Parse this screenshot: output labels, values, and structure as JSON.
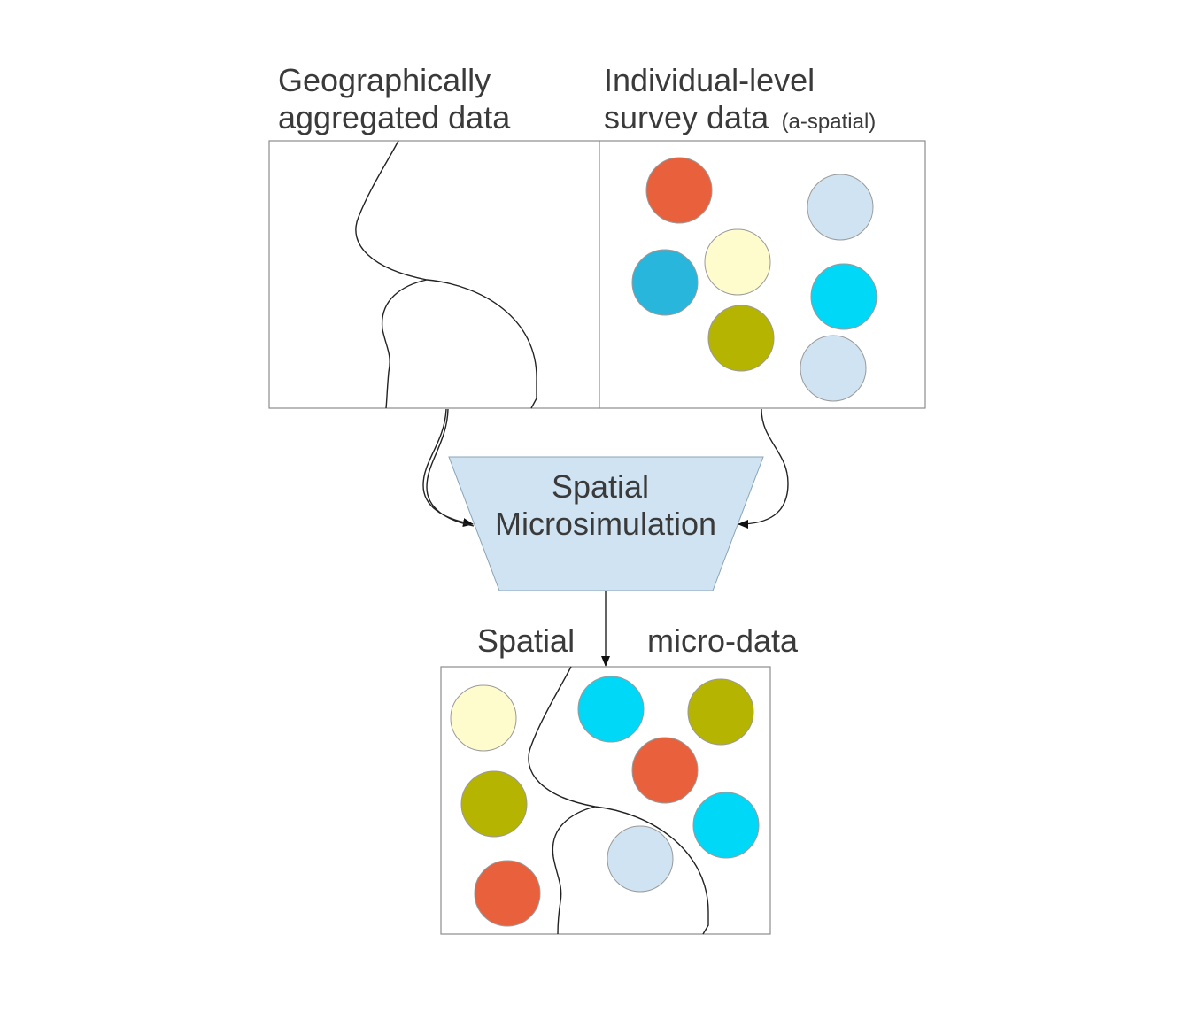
{
  "labels": {
    "aggregated_line1": "Geographically",
    "aggregated_line2": "aggregated data",
    "survey_line1": "Individual-level",
    "survey_line2": "survey data",
    "survey_note": "(a-spatial)",
    "process_line1": "Spatial",
    "process_line2": "Microsimulation",
    "output_word1": "Spatial",
    "output_word2": "micro-data"
  },
  "colors": {
    "orange": "#E8603C",
    "light_blue": "#CFE3F2",
    "teal": "#29B6DC",
    "cream": "#FEFCCD",
    "olive": "#B5B400",
    "cyan": "#00D8F8",
    "process_fill": "#CFE3F2"
  },
  "survey_individuals": [
    "orange",
    "light_blue",
    "teal",
    "cream",
    "cyan",
    "olive",
    "light_blue"
  ],
  "output_individuals": [
    "cream",
    "cyan",
    "olive",
    "orange",
    "olive",
    "cyan",
    "light_blue",
    "orange"
  ]
}
